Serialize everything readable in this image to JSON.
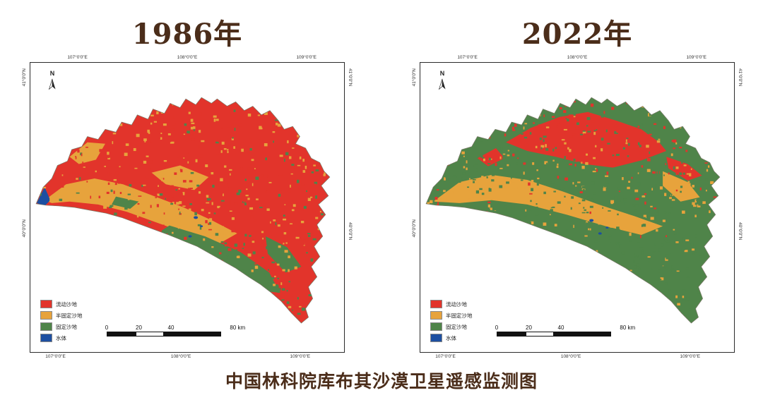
{
  "styles": {
    "title_color": "#4b2d1a",
    "caption_color": "#4b2d1a",
    "frame_border": "#2b2b2b",
    "coord_color": "#333333"
  },
  "map_colors": {
    "mobile_sand": "#e2342b",
    "semi_fixed": "#e7a33c",
    "fixed": "#4f8449",
    "water": "#1d4fa1"
  },
  "caption": "中国林科院库布其沙漠卫星遥感监测图",
  "panels": [
    {
      "title": "1986年",
      "north_label": "N",
      "coords_top": [
        "107°0'0\"E",
        "108°0'0\"E",
        "109°0'0\"E"
      ],
      "coords_bottom": [
        "107°0'0\"E",
        "108°0'0\"E",
        "109°0'0\"E"
      ],
      "coords_left": [
        "41°0'0\"N",
        "40°0'0\"N"
      ],
      "coords_right": [
        "41°0'0\"N",
        "40°0'0\"N"
      ],
      "legend": [
        {
          "label": "流动沙地",
          "color": "#e2342b"
        },
        {
          "label": "半固定沙地",
          "color": "#e7a33c"
        },
        {
          "label": "固定沙地",
          "color": "#4f8449"
        },
        {
          "label": "水体",
          "color": "#1d4fa1"
        }
      ],
      "scale_labels": [
        "0",
        "20",
        "40",
        "80 km"
      ]
    },
    {
      "title": "2022年",
      "north_label": "N",
      "coords_top": [
        "107°0'0\"E",
        "108°0'0\"E",
        "109°0'0\"E"
      ],
      "coords_bottom": [
        "107°0'0\"E",
        "108°0'0\"E",
        "109°0'0\"E"
      ],
      "coords_left": [
        "41°0'0\"N",
        "40°0'0\"N"
      ],
      "coords_right": [
        "41°0'0\"N",
        "40°0'0\"N"
      ],
      "legend": [
        {
          "label": "流动沙地",
          "color": "#e2342b"
        },
        {
          "label": "半固定沙地",
          "color": "#e7a33c"
        },
        {
          "label": "固定沙地",
          "color": "#4f8449"
        },
        {
          "label": "水体",
          "color": "#1d4fa1"
        }
      ],
      "scale_labels": [
        "0",
        "20",
        "40",
        "80 km"
      ]
    }
  ]
}
